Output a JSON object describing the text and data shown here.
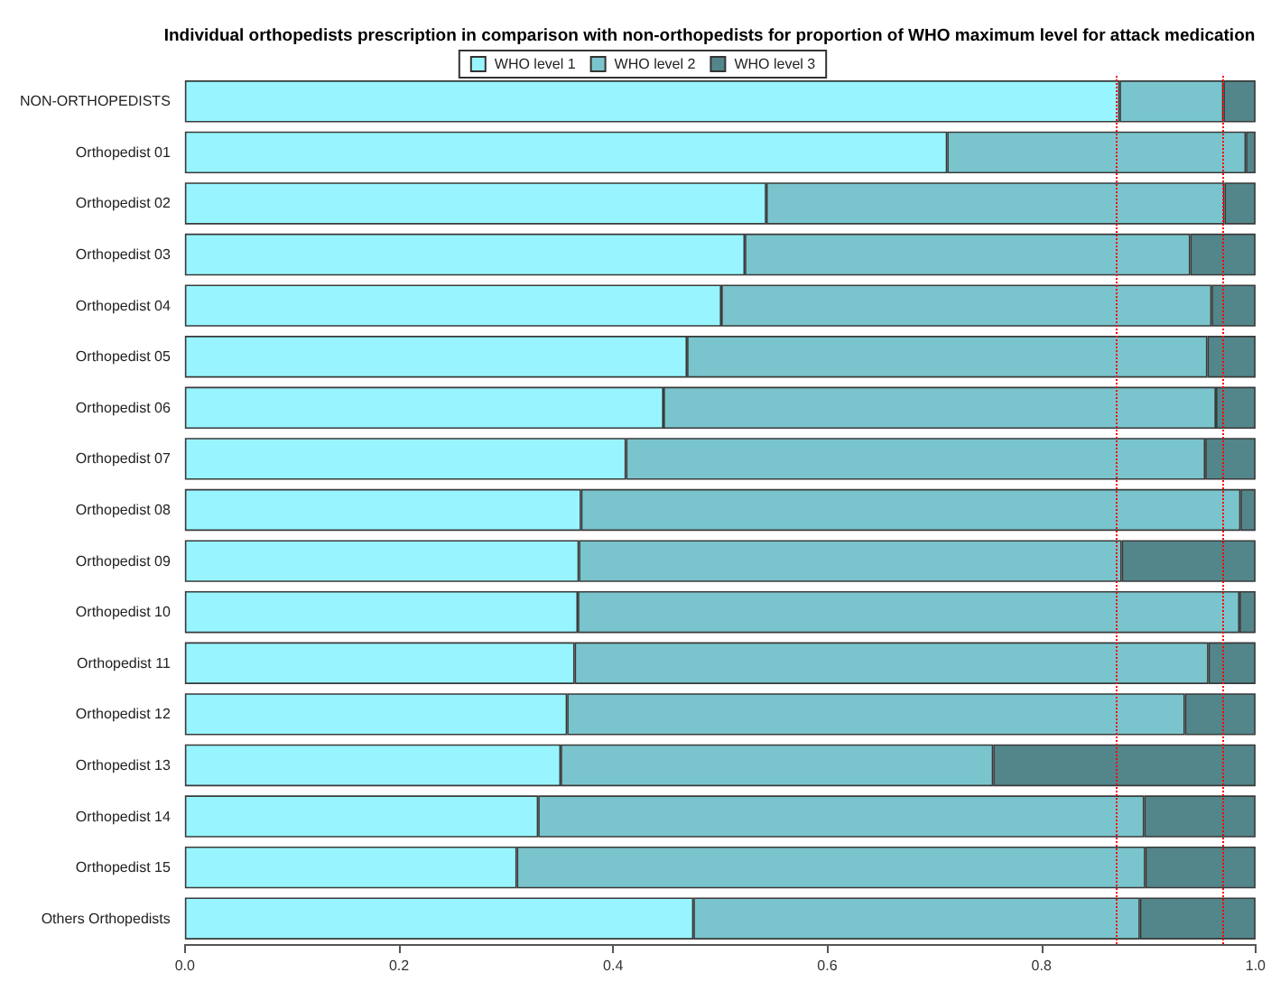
{
  "chart_data": {
    "type": "bar",
    "orientation": "horizontal",
    "stacked": true,
    "title": "Individual orthopedists prescription in comparison with non-orthopedists for proportion of WHO maximum level for attack medication",
    "categories": [
      "NON-ORTHOPEDISTS",
      "Orthopedist 01",
      "Orthopedist 02",
      "Orthopedist 03",
      "Orthopedist 04",
      "Orthopedist 05",
      "Orthopedist 06",
      "Orthopedist 07",
      "Orthopedist 08",
      "Orthopedist 09",
      "Orthopedist 10",
      "Orthopedist 11",
      "Orthopedist 12",
      "Orthopedist 13",
      "Orthopedist 14",
      "Orthopedist 15",
      "Others Orthopedists"
    ],
    "series": [
      {
        "name": "WHO level 1",
        "color": "#98f5ff",
        "values": [
          0.873,
          0.712,
          0.543,
          0.523,
          0.501,
          0.469,
          0.447,
          0.412,
          0.37,
          0.368,
          0.367,
          0.364,
          0.357,
          0.351,
          0.33,
          0.31,
          0.475
        ]
      },
      {
        "name": "WHO level 2",
        "color": "#7ac5cd",
        "values": [
          0.097,
          0.279,
          0.428,
          0.416,
          0.458,
          0.486,
          0.516,
          0.541,
          0.616,
          0.507,
          0.618,
          0.592,
          0.577,
          0.404,
          0.566,
          0.587,
          0.417
        ]
      },
      {
        "name": "WHO level 3",
        "color": "#53868b",
        "values": [
          0.03,
          0.009,
          0.029,
          0.061,
          0.041,
          0.045,
          0.037,
          0.047,
          0.014,
          0.125,
          0.015,
          0.044,
          0.066,
          0.245,
          0.104,
          0.103,
          0.108
        ]
      }
    ],
    "xlim": [
      0,
      1
    ],
    "xticks": [
      {
        "value": 0,
        "label": "0.0"
      },
      0.2,
      0.4,
      0.6,
      0.8,
      {
        "value": 1,
        "label": "1.0"
      }
    ],
    "ref_lines": [
      {
        "axis": "x",
        "value": 0.873,
        "color": "#ff0000",
        "line_style": "dotted"
      },
      {
        "axis": "x",
        "value": 0.97,
        "color": "#ff0000",
        "line_style": "dotted"
      }
    ],
    "grid": false,
    "legend": "top"
  }
}
